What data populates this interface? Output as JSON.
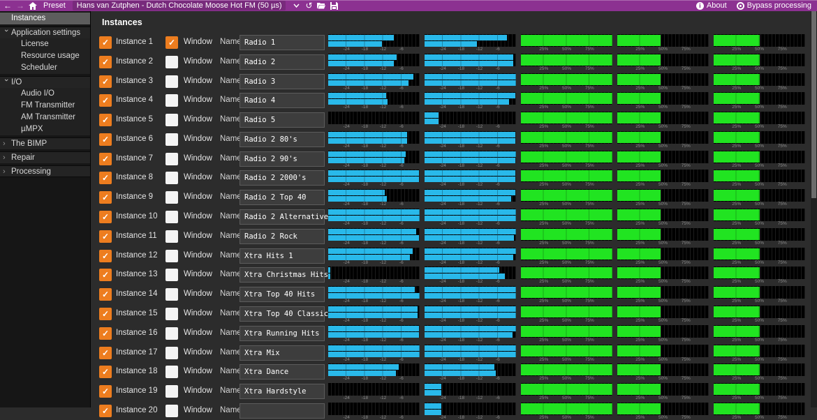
{
  "colors": {
    "purple": "#8c3191",
    "orange": "#ed7d1f",
    "meter_blue": "#29b9ea",
    "meter_green": "#21e421"
  },
  "titlebar": {
    "icons_left": [
      "back-arrow-icon",
      "forward-arrow-icon",
      "home-icon"
    ],
    "preset_label": "Preset",
    "preset_name": "Hans van Zutphen - Dutch Chocolate Moose Hot FM (50 µs)",
    "icons_mid": [
      "chevron-down-icon",
      "undo-icon",
      "open-folder-icon",
      "save-icon"
    ],
    "about_label": "About",
    "bypass_label": "Bypass processing"
  },
  "sidebar": {
    "items": [
      {
        "label": "Instances",
        "indent": 0,
        "chevron": "none",
        "selected": true
      },
      {
        "label": "Application settings",
        "indent": 0,
        "chevron": "down",
        "group": true
      },
      {
        "label": "License",
        "indent": 1,
        "chevron": "none"
      },
      {
        "label": "Resource usage",
        "indent": 1,
        "chevron": "none"
      },
      {
        "label": "Scheduler",
        "indent": 1,
        "chevron": "none"
      },
      {
        "label": "I/O",
        "indent": 0,
        "chevron": "down",
        "group": true
      },
      {
        "label": "Audio I/O",
        "indent": 1,
        "chevron": "none"
      },
      {
        "label": "FM Transmitter",
        "indent": 1,
        "chevron": "none"
      },
      {
        "label": "AM Transmitter",
        "indent": 1,
        "chevron": "none"
      },
      {
        "label": "µMPX",
        "indent": 1,
        "chevron": "none"
      },
      {
        "label": "The BIMP",
        "indent": 0,
        "chevron": "right",
        "group": true
      },
      {
        "label": "Repair",
        "indent": 0,
        "chevron": "right",
        "group": true
      },
      {
        "label": "Processing",
        "indent": 0,
        "chevron": "right",
        "group": true,
        "last": true
      }
    ]
  },
  "main": {
    "title": "Instances",
    "row_labels": {
      "window": "Window",
      "name": "Name"
    },
    "meter_scales": {
      "db_ticks": [
        {
          "label": "-24",
          "pos": 20
        },
        {
          "label": "-18",
          "pos": 40
        },
        {
          "label": "-12",
          "pos": 60
        },
        {
          "label": "-6",
          "pos": 80
        }
      ],
      "pct_ticks": [
        {
          "label": "25%",
          "pos": 25
        },
        {
          "label": "50%",
          "pos": 50
        },
        {
          "label": "75%",
          "pos": 75
        }
      ]
    },
    "instances": [
      {
        "label": "Instance 1",
        "enabled": true,
        "window": true,
        "name": "Radio 1",
        "meters": {
          "a": [
            72,
            59
          ],
          "b": [
            90,
            57
          ],
          "c": 100,
          "d": 47,
          "e": 50
        }
      },
      {
        "label": "Instance 2",
        "enabled": true,
        "window": false,
        "name": "Radio 2",
        "meters": {
          "a": [
            75,
            72
          ],
          "b": [
            97,
            97
          ],
          "c": 100,
          "d": 47,
          "e": 50
        }
      },
      {
        "label": "Instance 3",
        "enabled": true,
        "window": false,
        "name": "Radio 3",
        "meters": {
          "a": [
            93,
            88
          ],
          "b": [
            100,
            100
          ],
          "c": 100,
          "d": 47,
          "e": 50
        }
      },
      {
        "label": "Instance 4",
        "enabled": true,
        "window": false,
        "name": "Radio 4",
        "meters": {
          "a": [
            63,
            65
          ],
          "b": [
            99,
            92
          ],
          "c": 100,
          "d": 47,
          "e": 50
        }
      },
      {
        "label": "Instance 5",
        "enabled": true,
        "window": false,
        "name": "Radio 5",
        "meters": {
          "a": [
            0,
            0
          ],
          "b": [
            15,
            15
          ],
          "c": 100,
          "d": 47,
          "e": 50
        }
      },
      {
        "label": "Instance 6",
        "enabled": true,
        "window": false,
        "name": "Radio 2 80's",
        "meters": {
          "a": [
            86,
            86
          ],
          "b": [
            99,
            99
          ],
          "c": 100,
          "d": 47,
          "e": 50
        }
      },
      {
        "label": "Instance 7",
        "enabled": true,
        "window": false,
        "name": "Radio 2 90's",
        "meters": {
          "a": [
            85,
            83
          ],
          "b": [
            100,
            99
          ],
          "c": 100,
          "d": 47,
          "e": 50
        }
      },
      {
        "label": "Instance 8",
        "enabled": true,
        "window": false,
        "name": "Radio 2 2000's",
        "meters": {
          "a": [
            99,
            99
          ],
          "b": [
            99,
            99
          ],
          "c": 100,
          "d": 47,
          "e": 50
        }
      },
      {
        "label": "Instance 9",
        "enabled": true,
        "window": false,
        "name": "Radio 2 Top 40",
        "meters": {
          "a": [
            62,
            64
          ],
          "b": [
            99,
            95
          ],
          "c": 100,
          "d": 47,
          "e": 50
        }
      },
      {
        "label": "Instance 10",
        "enabled": true,
        "window": false,
        "name": "Radio 2 Alternative",
        "meters": {
          "a": [
            100,
            100
          ],
          "b": [
            100,
            100
          ],
          "c": 100,
          "d": 47,
          "e": 50
        }
      },
      {
        "label": "Instance 11",
        "enabled": true,
        "window": false,
        "name": "Radio 2 Rock",
        "meters": {
          "a": [
            96,
            99
          ],
          "b": [
            100,
            98
          ],
          "c": 100,
          "d": 47,
          "e": 50
        }
      },
      {
        "label": "Instance 12",
        "enabled": true,
        "window": false,
        "name": "Xtra Hits 1",
        "meters": {
          "a": [
            92,
            89
          ],
          "b": [
            100,
            97
          ],
          "c": 100,
          "d": 47,
          "e": 50
        }
      },
      {
        "label": "Instance 13",
        "enabled": true,
        "window": false,
        "name": "Xtra Christmas Hits",
        "meters": {
          "a": [
            2,
            2
          ],
          "b": [
            82,
            88
          ],
          "c": 100,
          "d": 47,
          "e": 50
        }
      },
      {
        "label": "Instance 14",
        "enabled": true,
        "window": false,
        "name": "Xtra Top 40 Hits",
        "meters": {
          "a": [
            95,
            100
          ],
          "b": [
            100,
            100
          ],
          "c": 100,
          "d": 47,
          "e": 50
        }
      },
      {
        "label": "Instance 15",
        "enabled": true,
        "window": false,
        "name": "Xtra Top 40 Classic",
        "meters": {
          "a": [
            98,
            98
          ],
          "b": [
            100,
            100
          ],
          "c": 100,
          "d": 47,
          "e": 50
        }
      },
      {
        "label": "Instance 16",
        "enabled": true,
        "window": false,
        "name": "Xtra Running Hits",
        "meters": {
          "a": [
            99,
            99
          ],
          "b": [
            100,
            96
          ],
          "c": 100,
          "d": 47,
          "e": 50
        }
      },
      {
        "label": "Instance 17",
        "enabled": true,
        "window": false,
        "name": "Xtra Mix",
        "meters": {
          "a": [
            100,
            100
          ],
          "b": [
            100,
            100
          ],
          "c": 100,
          "d": 47,
          "e": 50
        }
      },
      {
        "label": "Instance 18",
        "enabled": true,
        "window": false,
        "name": "Xtra Dance",
        "meters": {
          "a": [
            77,
            74
          ],
          "b": [
            76,
            78
          ],
          "c": 100,
          "d": 47,
          "e": 50
        }
      },
      {
        "label": "Instance 19",
        "enabled": true,
        "window": false,
        "name": "Xtra Hardstyle",
        "meters": {
          "a": [
            0,
            0
          ],
          "b": [
            18,
            18
          ],
          "c": 100,
          "d": 47,
          "e": 50
        }
      },
      {
        "label": "Instance 20",
        "enabled": true,
        "window": false,
        "name": "",
        "meters": {
          "a": [
            0,
            0
          ],
          "b": [
            18,
            18
          ],
          "c": 100,
          "d": 47,
          "e": 50
        }
      }
    ]
  }
}
